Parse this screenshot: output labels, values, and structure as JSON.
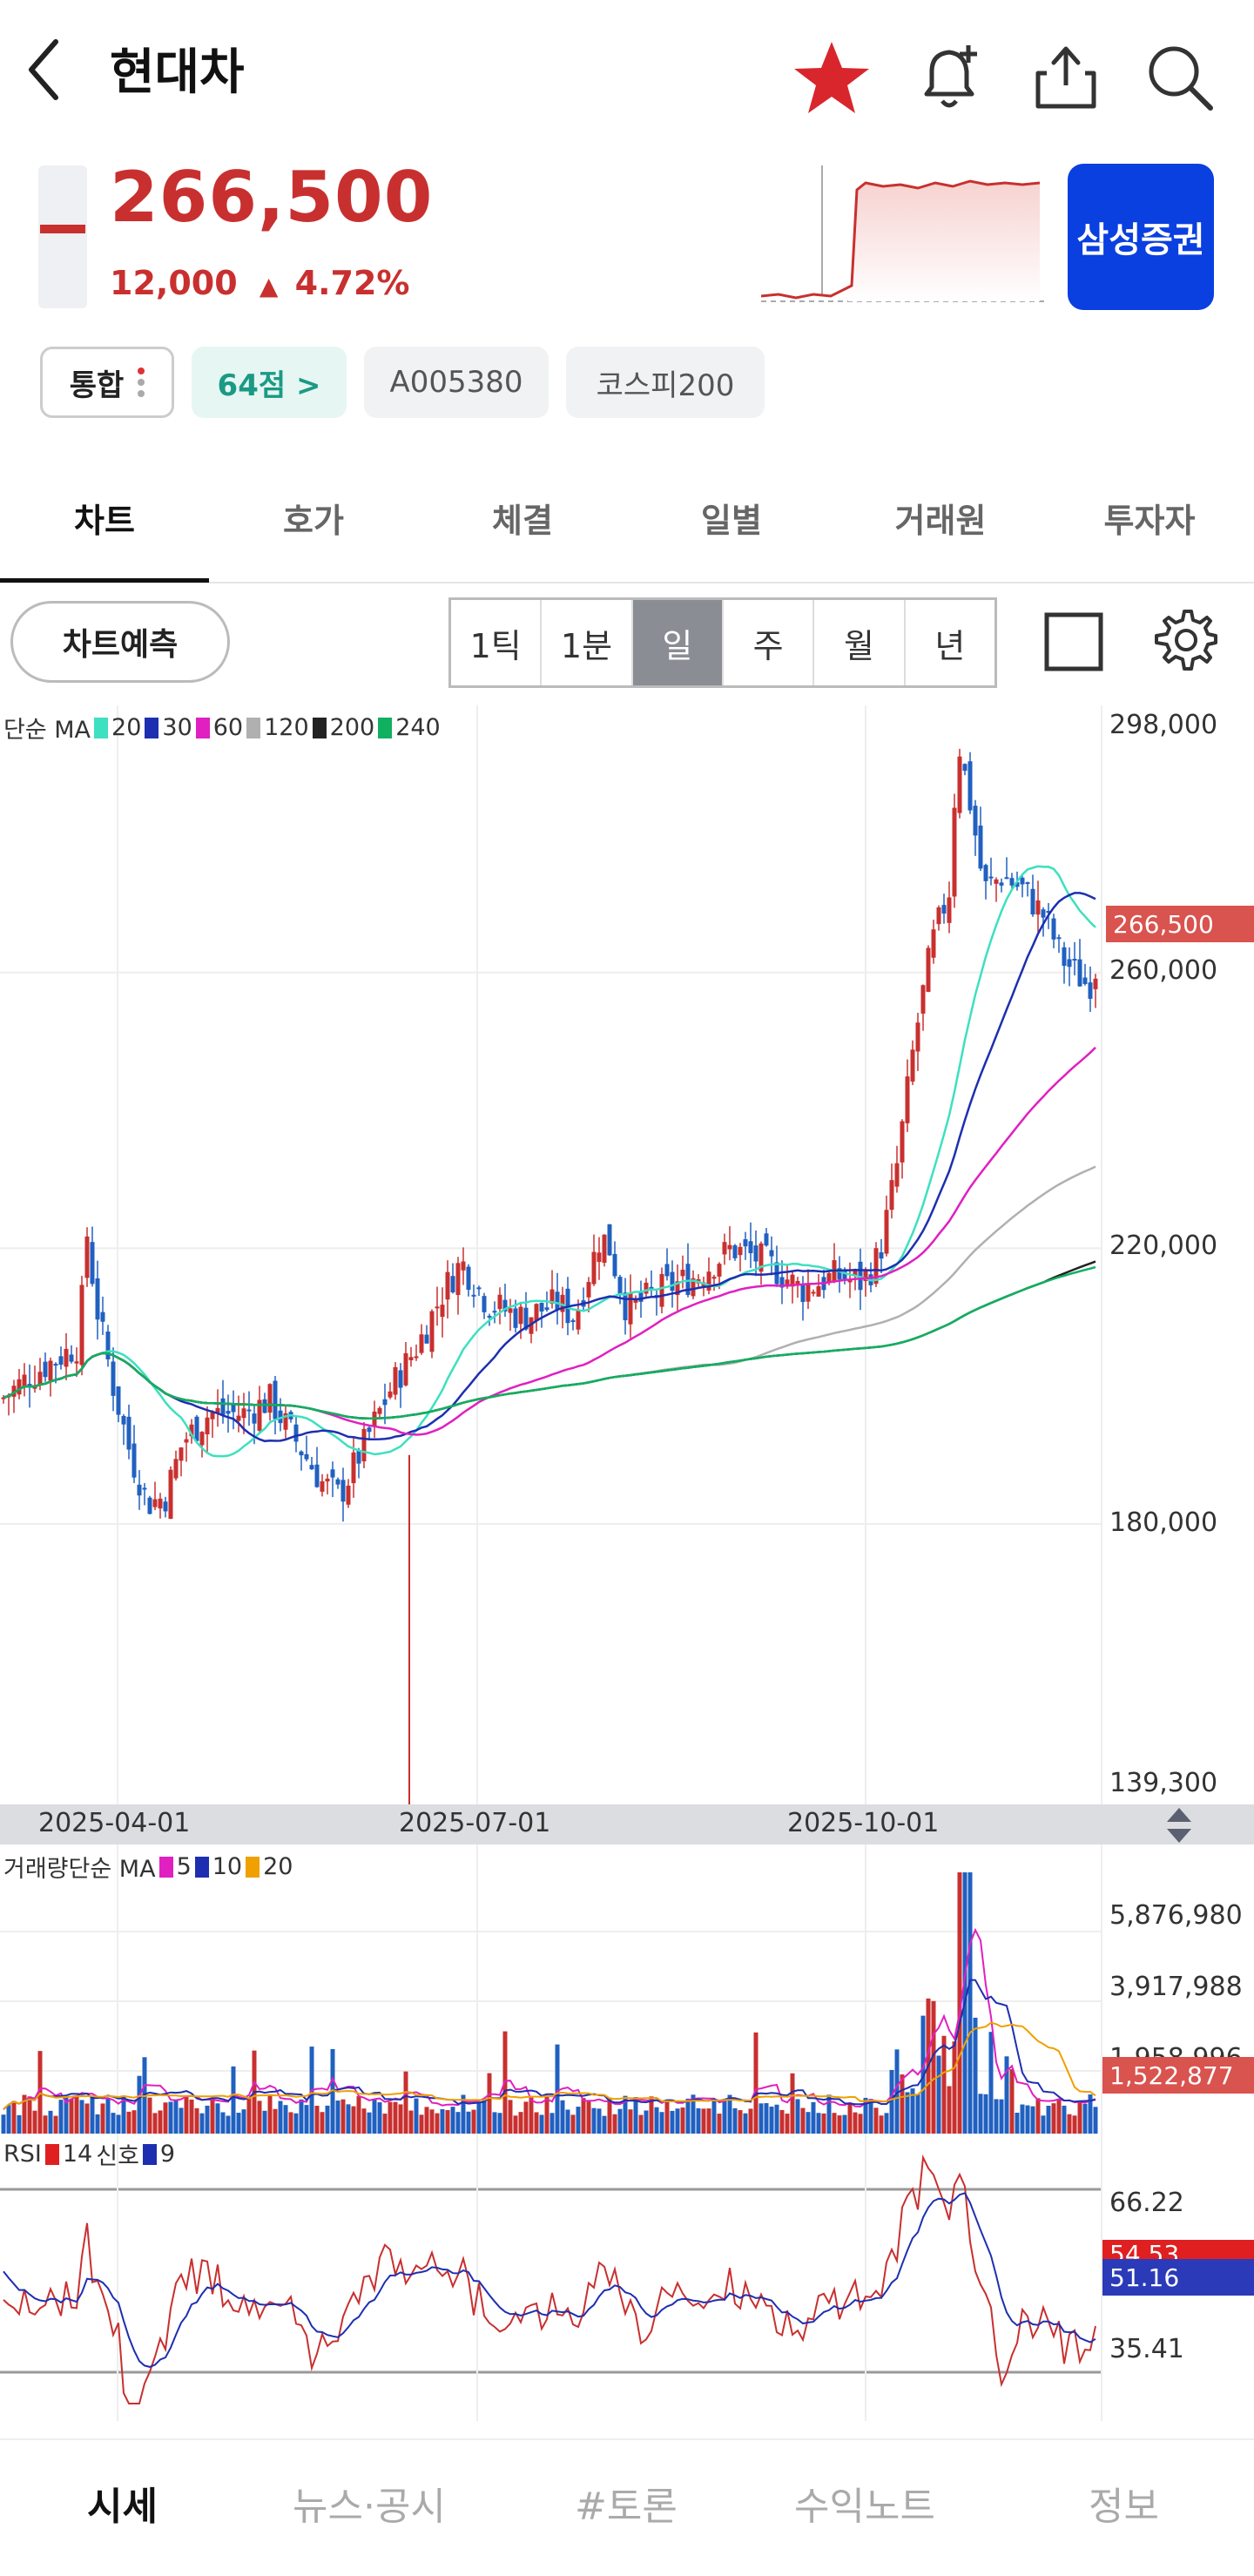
{
  "header": {
    "title": "현대차",
    "price": "266,500",
    "change": "12,000",
    "change_pct": "4.72%",
    "broker": "삼성증권"
  },
  "tags": [
    "통합",
    "64점 >",
    "A005380",
    "코스피200"
  ],
  "tabs": [
    "차트",
    "호가",
    "체결",
    "일별",
    "거래원",
    "투자자"
  ],
  "toolbar": {
    "predict": "차트예측",
    "periods": [
      "1틱",
      "1분",
      "일",
      "주",
      "월",
      "년"
    ],
    "active_period": "일"
  },
  "ma_legend": {
    "label": "단순 MA",
    "items": [
      {
        "value": "20",
        "color": "#3de0c0"
      },
      {
        "value": "30",
        "color": "#1d2fb0"
      },
      {
        "value": "60",
        "color": "#e020c0"
      },
      {
        "value": "120",
        "color": "#b0b0b0"
      },
      {
        "value": "200",
        "color": "#222222"
      },
      {
        "value": "240",
        "color": "#10b060"
      }
    ]
  },
  "price_axis": [
    "298,000",
    "260,000",
    "220,000",
    "180,000",
    "139,300"
  ],
  "current_price_tag": "266,500",
  "dates": [
    "2025-04-01",
    "2025-07-01",
    "2025-10-01"
  ],
  "volume_legend": {
    "label": "거래량단순 MA",
    "items": [
      {
        "value": "5",
        "color": "#e020c0"
      },
      {
        "value": "10",
        "color": "#1d2fb0"
      },
      {
        "value": "20",
        "color": "#f0a000"
      }
    ]
  },
  "volume_axis": [
    "5,876,980",
    "3,917,988",
    "1,958,996"
  ],
  "current_volume_tag": "1,522,877",
  "rsi_legend": {
    "label": "RSI",
    "period": "14",
    "signal_label": "신호",
    "signal_period": "9",
    "rsi_color": "#e02020",
    "signal_color": "#1d2fb0"
  },
  "rsi_axis": [
    "66.22",
    "35.41"
  ],
  "rsi_tag_1": "54.53",
  "rsi_tag_2": "51.16",
  "bottom_nav": [
    "시세",
    "뉴스·공시",
    "#토론",
    "수익노트",
    "정보"
  ],
  "colors": {
    "up": "#c8302f",
    "down": "#2060c0",
    "brand": "#0a3fe0"
  },
  "chart_data": {
    "type": "candlestick",
    "ylim": [
      139300,
      298000
    ],
    "latest_close": 266500,
    "x_ticks": [
      "2025-04-01",
      "2025-07-01",
      "2025-10-01"
    ],
    "y_ticks": [
      298000,
      260000,
      220000,
      180000,
      139300
    ]
  }
}
